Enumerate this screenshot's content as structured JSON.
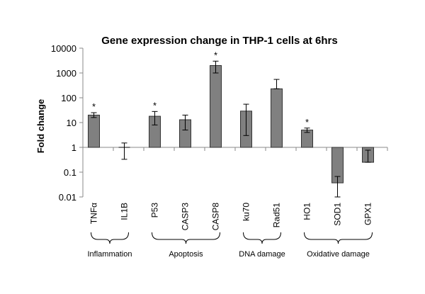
{
  "chart_data": {
    "type": "bar",
    "title": "Gene expression change in THP-1 cells at 6hrs",
    "xlabel": "",
    "ylabel": "Fold change",
    "yscale": "log",
    "ylim": [
      0.01,
      10000
    ],
    "yticks": [
      "10000",
      "1000",
      "100",
      "10",
      "1",
      "0.1",
      "0.01"
    ],
    "baseline": 1,
    "grid": false,
    "legend": null,
    "categories": [
      "TNFα",
      "IL1B",
      "P53",
      "CASP3",
      "CASP8",
      "ku70",
      "Rad51",
      "HO1",
      "SOD1",
      "GPX1"
    ],
    "values": [
      20,
      1,
      18,
      13,
      2000,
      29,
      230,
      5,
      0.037,
      0.25
    ],
    "error_upper": [
      25,
      1.5,
      28,
      20,
      3000,
      55,
      550,
      6,
      0.067,
      0.77
    ],
    "error_lower": [
      16,
      0.33,
      8,
      5,
      1000,
      3,
      230,
      4,
      0.01,
      0.25
    ],
    "significant": [
      true,
      false,
      true,
      false,
      true,
      false,
      false,
      true,
      false,
      false
    ],
    "significance_marker": "*",
    "groups": [
      {
        "label": "Inflammation",
        "categories": [
          "TNFα",
          "IL1B"
        ]
      },
      {
        "label": "Apoptosis",
        "categories": [
          "P53",
          "CASP3",
          "CASP8"
        ]
      },
      {
        "label": "DNA damage",
        "categories": [
          "ku70",
          "Rad51"
        ]
      },
      {
        "label": "Oxidative damage",
        "categories": [
          "HO1",
          "SOD1",
          "GPX1"
        ]
      }
    ],
    "colors": {
      "bar_fill": "#808080",
      "bar_stroke": "#333333",
      "axis": "#888888"
    }
  }
}
